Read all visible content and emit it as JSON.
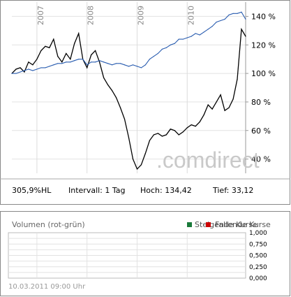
{
  "price_panel": {
    "years": [
      "2007",
      "2008",
      "2009",
      "2010"
    ],
    "y_ticks": [
      "140 %",
      "120 %",
      "100 %",
      "80 %",
      "60 %",
      "40 %"
    ],
    "watermark": ".comdirect",
    "info_bar": {
      "name": "305,9%HL",
      "interval": "Intervall: 1 Tag",
      "high": "Hoch:  134,42",
      "low": "Tief:  33,12"
    }
  },
  "volume_panel": {
    "title": "Volumen (rot-grün)",
    "legend": [
      {
        "label": "Steigende Kurse",
        "color": "#1a7a3a"
      },
      {
        "label": "Fallende Kurse",
        "color": "#cc0000"
      }
    ],
    "y_ticks": [
      "1,000",
      "0,750",
      "0,500",
      "0,250",
      "0,000"
    ],
    "timestamp": "10.03.2011 09:00 Uhr"
  },
  "colors": {
    "stock": "#000000",
    "benchmark": "#2a5db0",
    "grid": "#dddddd",
    "frame": "#888888"
  },
  "chart_data": {
    "type": "line",
    "ylim": [
      30,
      150
    ],
    "x_range": [
      "2006-07",
      "2011-03"
    ],
    "series": [
      {
        "x": [
          "2006-07",
          "2006-08",
          "2006-09",
          "2006-10",
          "2006-11",
          "2006-12",
          "2007-01",
          "2007-02",
          "2007-03",
          "2007-04",
          "2007-05",
          "2007-06",
          "2007-07",
          "2007-08",
          "2007-09",
          "2007-10",
          "2007-11",
          "2007-12",
          "2008-01",
          "2008-02",
          "2008-03",
          "2008-04",
          "2008-05",
          "2008-06",
          "2008-07",
          "2008-08",
          "2008-09",
          "2008-10",
          "2008-11",
          "2008-12",
          "2009-01",
          "2009-02",
          "2009-03",
          "2009-04",
          "2009-05",
          "2009-06",
          "2009-07",
          "2009-08",
          "2009-09",
          "2009-10",
          "2009-11",
          "2009-12",
          "2010-01",
          "2010-02",
          "2010-03",
          "2010-04",
          "2010-05",
          "2010-06",
          "2010-07",
          "2010-08",
          "2010-09",
          "2010-10",
          "2010-11",
          "2010-12",
          "2011-01",
          "2011-02",
          "2011-03"
        ],
        "values": [
          100,
          103,
          104,
          101,
          108,
          106,
          110,
          116,
          119,
          118,
          124,
          112,
          108,
          114,
          110,
          121,
          128,
          110,
          104,
          113,
          116,
          108,
          97,
          92,
          88,
          83,
          76,
          68,
          55,
          40,
          33,
          36,
          44,
          53,
          57,
          58,
          56,
          57,
          61,
          60,
          57,
          59,
          62,
          64,
          63,
          66,
          71,
          78,
          75,
          80,
          85,
          74,
          76,
          82,
          96,
          131,
          126
        ]
      },
      {
        "x": [
          "2006-07",
          "2006-08",
          "2006-09",
          "2006-10",
          "2006-11",
          "2006-12",
          "2007-01",
          "2007-02",
          "2007-03",
          "2007-04",
          "2007-05",
          "2007-06",
          "2007-07",
          "2007-08",
          "2007-09",
          "2007-10",
          "2007-11",
          "2007-12",
          "2008-01",
          "2008-02",
          "2008-03",
          "2008-04",
          "2008-05",
          "2008-06",
          "2008-07",
          "2008-08",
          "2008-09",
          "2008-10",
          "2008-11",
          "2008-12",
          "2009-01",
          "2009-02",
          "2009-03",
          "2009-04",
          "2009-05",
          "2009-06",
          "2009-07",
          "2009-08",
          "2009-09",
          "2009-10",
          "2009-11",
          "2009-12",
          "2010-01",
          "2010-02",
          "2010-03",
          "2010-04",
          "2010-05",
          "2010-06",
          "2010-07",
          "2010-08",
          "2010-09",
          "2010-10",
          "2010-11",
          "2010-12",
          "2011-01",
          "2011-02",
          "2011-03"
        ],
        "values": [
          100,
          100,
          101,
          102,
          103,
          102,
          103,
          104,
          104,
          105,
          106,
          107,
          107,
          108,
          108,
          109,
          110,
          110,
          106,
          108,
          108,
          109,
          108,
          107,
          106,
          107,
          107,
          106,
          105,
          106,
          105,
          104,
          106,
          110,
          112,
          114,
          117,
          118,
          120,
          121,
          124,
          124,
          125,
          126,
          128,
          127,
          129,
          131,
          133,
          136,
          137,
          138,
          141,
          142,
          142,
          143,
          138
        ]
      }
    ]
  }
}
